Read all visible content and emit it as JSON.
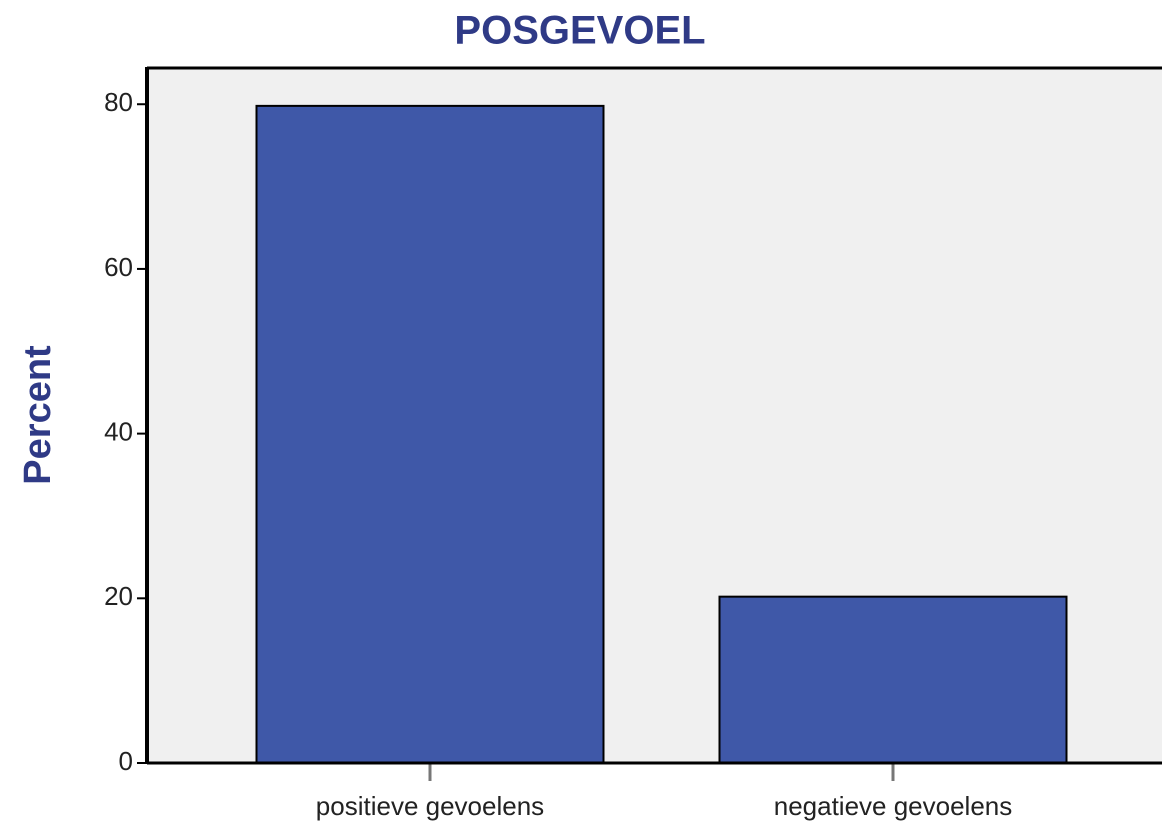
{
  "chart_data": {
    "type": "bar",
    "title": "POSGEVOEL",
    "y_label": "Percent",
    "categories": [
      "positieve gevoelens",
      "negatieve gevoelens"
    ],
    "values": [
      79.8,
      20.2
    ],
    "color": "#3f58a8",
    "ylim": [
      0,
      84.4
    ],
    "yticks": [
      0,
      20,
      40,
      60,
      80
    ],
    "grid": false
  }
}
